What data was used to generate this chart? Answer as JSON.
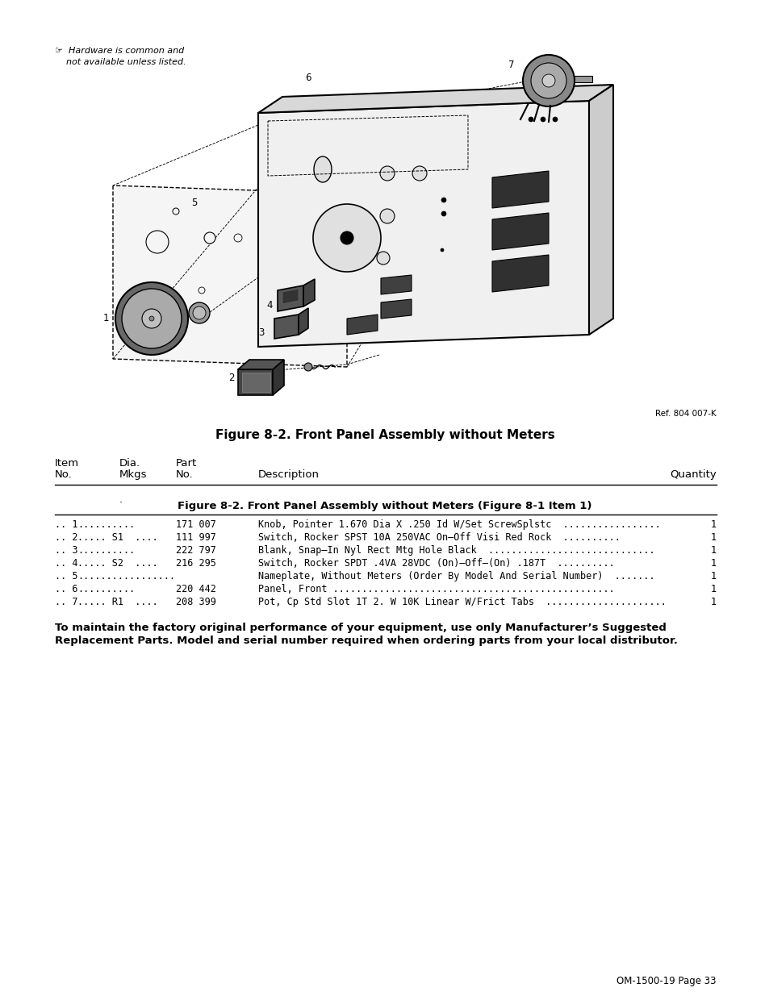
{
  "bg_color": "#ffffff",
  "page_width": 9.54,
  "page_height": 12.35,
  "hardware_note_line1": "☞  Hardware is common and",
  "hardware_note_line2": "    not available unless listed.",
  "ref_text": "Ref. 804 007-K",
  "figure_title": "Figure 8-2. Front Panel Assembly without Meters",
  "section_title": "Figure 8-2. Front Panel Assembly without Meters (Figure 8-1 Item 1)",
  "col_headers": [
    "Item\nNo.",
    "Dia.\nMkgs",
    "Part\nNo.",
    "Description",
    "Quantity"
  ],
  "parts": [
    [
      ".. 1",
      "..........",
      "171 007",
      "Knob, Pointer 1.670 Dia X .250 Id W/Set ScrewSplstc  .................",
      "1"
    ],
    [
      ".. 2",
      "..... S1  ....",
      "111 997",
      "Switch, Rocker SPST 10A 250VAC On–Off Visi Red Rock  ..........",
      "1"
    ],
    [
      ".. 3",
      "..........",
      "222 797",
      "Blank, Snap–In Nyl Rect Mtg Hole Black  .............................",
      "1"
    ],
    [
      ".. 4",
      "..... S2  ....",
      "216 295",
      "Switch, Rocker SPDT .4VA 28VDC (On)–Off–(On) .187T  ..........",
      "1"
    ],
    [
      ".. 5",
      ".................",
      "",
      "Nameplate, Without Meters (Order By Model And Serial Number)  .......",
      "1"
    ],
    [
      ".. 6",
      "..........",
      "220 442",
      "Panel, Front .................................................",
      "1"
    ],
    [
      ".. 7",
      "..... R1  ....",
      "208 399",
      "Pot, Cp Std Slot 1T 2. W 10K Linear W/Frict Tabs  .....................",
      "1"
    ]
  ],
  "footer_line1": "To maintain the factory original performance of your equipment, use only Manufacturer’s Suggested",
  "footer_line2": "Replacement Parts. Model and serial number required when ordering parts from your local distributor.",
  "page_footer": "OM-1500-19 Page 33"
}
